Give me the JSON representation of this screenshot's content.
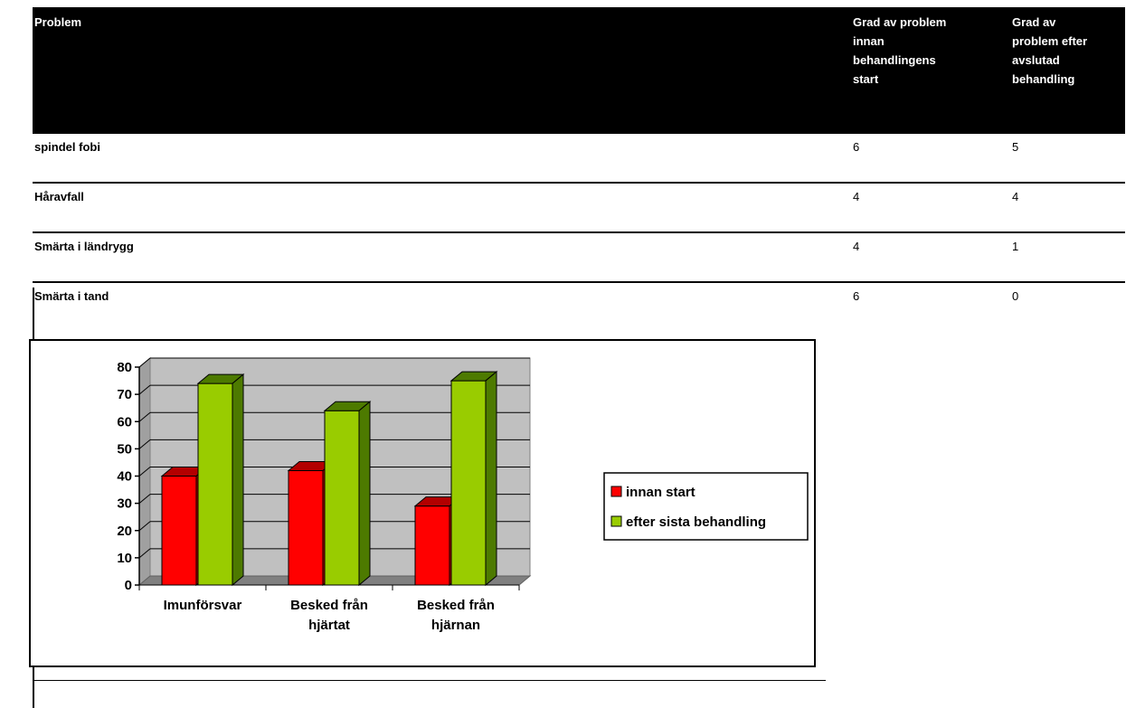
{
  "table": {
    "headers": {
      "col1": "Problem",
      "col2_lines": [
        "Grad av problem",
        "innan",
        "behandlingens",
        "start"
      ],
      "col3_lines": [
        "Grad av",
        "problem efter",
        "avslutad",
        "behandling"
      ]
    },
    "rows": [
      {
        "problem": "spindel fobi",
        "before": "6",
        "after": "5"
      },
      {
        "problem": "Håravfall",
        "before": "4",
        "after": "4"
      },
      {
        "problem": "Smärta i ländrygg",
        "before": "4",
        "after": "1"
      },
      {
        "problem": "Smärta i tand",
        "before": "6",
        "after": "0"
      }
    ]
  },
  "chart_data": {
    "type": "bar",
    "style": "3d-clustered",
    "categories": [
      [
        "Imunförsvar"
      ],
      [
        "Besked från",
        "hjärtat"
      ],
      [
        "Besked från",
        "hjärnan"
      ]
    ],
    "series": [
      {
        "name": "innan start",
        "color": "#ff0000",
        "side_color": "#b30000",
        "values": [
          40,
          42,
          29
        ]
      },
      {
        "name": "efter sista behandling",
        "color": "#99cc00",
        "side_color": "#4d7a00",
        "values": [
          74,
          64,
          75
        ]
      }
    ],
    "ylim": [
      0,
      80
    ],
    "yticks": [
      0,
      10,
      20,
      30,
      40,
      50,
      60,
      70,
      80
    ],
    "grid": true,
    "wall_color": "#c0c0c0",
    "legend_position": "right"
  }
}
